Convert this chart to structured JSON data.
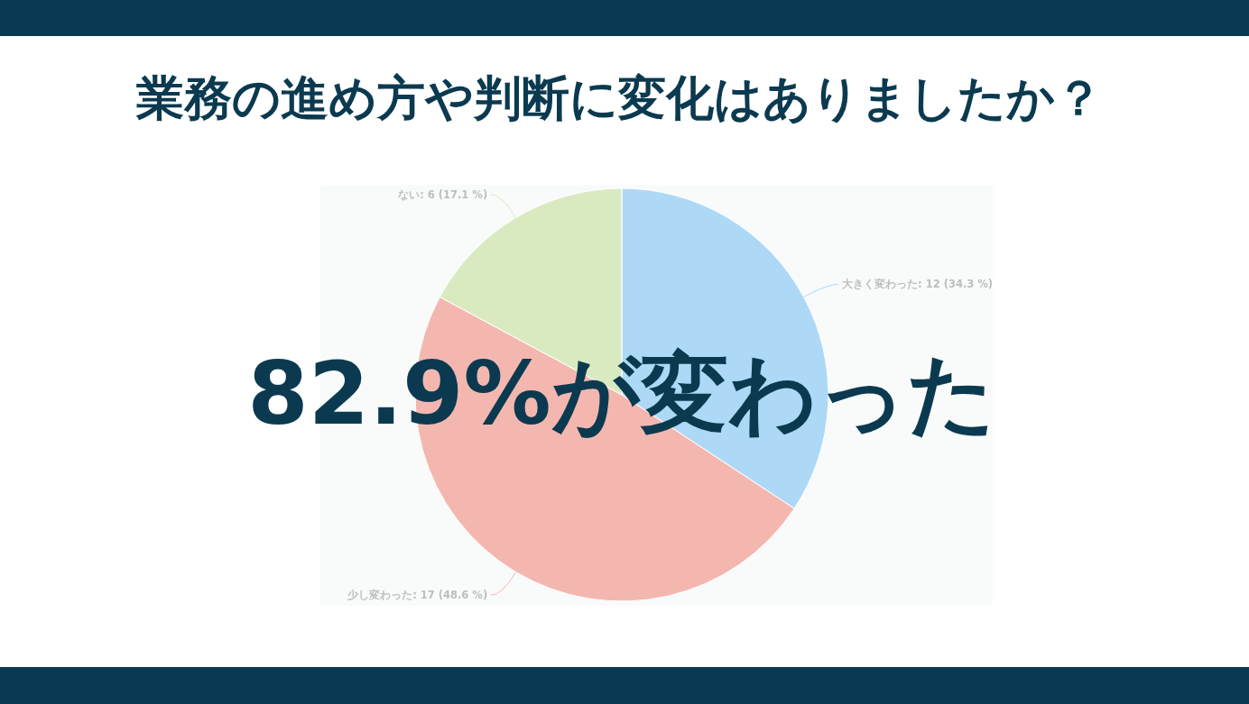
{
  "chart_data": {
    "type": "pie",
    "title": "業務の進め方や判断に変化はありましたか？",
    "categories": [
      "大きく変わった",
      "少し変わった",
      "ない"
    ],
    "values": [
      12,
      17,
      6
    ],
    "value_labels": [
      "12 (34.3 %)",
      "17 (48.6 %)",
      "6 (17.1 %)"
    ],
    "colors": [
      "#aed9f6",
      "#f4b7b0",
      "#d9eac0"
    ],
    "annotations": [
      "82.9%が変わった"
    ]
  }
}
